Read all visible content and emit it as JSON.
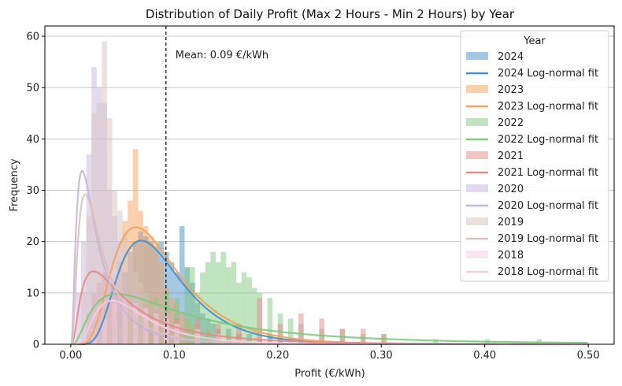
{
  "chart_data": {
    "type": "bar",
    "title": "Distribution of Daily Profit (Max 2 Hours - Min 2 Hours) by Year",
    "xlabel": "Profit (€/kWh)",
    "ylabel": "Frequency",
    "xlim": [
      -0.025,
      0.525
    ],
    "ylim": [
      0,
      62
    ],
    "xticks": [
      0.0,
      0.1,
      0.2,
      0.3,
      0.4,
      0.5
    ],
    "xtick_labels": [
      "0.00",
      "0.10",
      "0.20",
      "0.30",
      "0.40",
      "0.50"
    ],
    "yticks": [
      0,
      10,
      20,
      30,
      40,
      50,
      60
    ],
    "grid": "horizontal",
    "bin_width": 0.005,
    "mean_line": {
      "x": 0.092,
      "label": "Mean: 0.09 €/kWh"
    },
    "legend": {
      "title": "Year",
      "placement": "top-right"
    },
    "series": [
      {
        "name": "2024",
        "fit_name": "2024 Log-normal fit",
        "color": "#4a8fc9",
        "hist_x": [
          0.04,
          0.045,
          0.05,
          0.055,
          0.06,
          0.065,
          0.07,
          0.075,
          0.08,
          0.085,
          0.09,
          0.095,
          0.1,
          0.105,
          0.11,
          0.115,
          0.12,
          0.125,
          0.13,
          0.135,
          0.14,
          0.15,
          0.16,
          0.17,
          0.18,
          0.19,
          0.2,
          0.22
        ],
        "hist_y": [
          5,
          10,
          14,
          18,
          20,
          22,
          21,
          20,
          19,
          20,
          18,
          16,
          14,
          23,
          15,
          12,
          8,
          6,
          5,
          4,
          3,
          3,
          2,
          2,
          1,
          2,
          1,
          1
        ],
        "fit": {
          "peak_x": 0.068,
          "peak_y": 20.2,
          "sigma": 0.45
        }
      },
      {
        "name": "2023",
        "fit_name": "2023 Log-normal fit",
        "color": "#f5a25b",
        "hist_x": [
          0.035,
          0.04,
          0.045,
          0.05,
          0.055,
          0.06,
          0.065,
          0.07,
          0.075,
          0.08,
          0.085,
          0.09,
          0.095,
          0.1,
          0.105,
          0.11,
          0.115,
          0.12,
          0.13,
          0.14,
          0.15,
          0.16,
          0.18,
          0.2
        ],
        "hist_y": [
          8,
          12,
          16,
          24,
          28,
          38,
          26,
          23,
          21,
          20,
          16,
          11,
          9,
          8,
          6,
          5,
          4,
          4,
          3,
          3,
          2,
          2,
          1,
          1
        ],
        "fit": {
          "peak_x": 0.063,
          "peak_y": 22.8,
          "sigma": 0.5
        }
      },
      {
        "name": "2022",
        "fit_name": "2022 Log-normal fit",
        "color": "#7fc97f",
        "hist_x": [
          0.03,
          0.04,
          0.05,
          0.06,
          0.07,
          0.08,
          0.09,
          0.1,
          0.11,
          0.115,
          0.12,
          0.125,
          0.13,
          0.135,
          0.14,
          0.145,
          0.15,
          0.155,
          0.16,
          0.165,
          0.17,
          0.175,
          0.18,
          0.19,
          0.2,
          0.21,
          0.22,
          0.24,
          0.26,
          0.28,
          0.3,
          0.35,
          0.4,
          0.45
        ],
        "hist_y": [
          4,
          6,
          8,
          9,
          10,
          9,
          10,
          9,
          15,
          15,
          10,
          14,
          16,
          18,
          16,
          18,
          15,
          16,
          12,
          14,
          13,
          11,
          10,
          9,
          6,
          5,
          4,
          3,
          3,
          2,
          2,
          1,
          1,
          1
        ],
        "fit": {
          "peak_x": 0.045,
          "peak_y": 9.8,
          "sigma": 0.9
        }
      },
      {
        "name": "2021",
        "fit_name": "2021 Log-normal fit",
        "color": "#e88a8a",
        "hist_x": [
          0.015,
          0.02,
          0.025,
          0.03,
          0.035,
          0.04,
          0.05,
          0.06,
          0.07,
          0.08,
          0.09,
          0.1,
          0.12,
          0.14,
          0.16,
          0.18,
          0.2,
          0.22,
          0.24,
          0.26,
          0.28,
          0.3
        ],
        "hist_y": [
          6,
          10,
          12,
          14,
          12,
          10,
          9,
          8,
          8,
          7,
          6,
          5,
          5,
          4,
          4,
          9,
          4,
          6,
          5,
          3,
          3,
          2
        ],
        "fit": {
          "peak_x": 0.022,
          "peak_y": 14.2,
          "sigma": 0.9
        }
      },
      {
        "name": "2020",
        "fit_name": "2020 Log-normal fit",
        "color": "#c7b5dc",
        "hist_x": [
          0.005,
          0.01,
          0.015,
          0.02,
          0.025,
          0.03,
          0.035,
          0.04,
          0.045,
          0.05,
          0.06,
          0.07,
          0.08,
          0.09,
          0.1
        ],
        "hist_y": [
          10,
          20,
          37,
          54,
          50,
          47,
          30,
          25,
          20,
          14,
          10,
          7,
          5,
          3,
          2
        ],
        "fit": {
          "peak_x": 0.011,
          "peak_y": 33.8,
          "sigma": 0.85
        }
      },
      {
        "name": "2019",
        "fit_name": "2019 Log-normal fit",
        "color": "#d9c2bd",
        "hist_x": [
          0.01,
          0.015,
          0.02,
          0.025,
          0.03,
          0.035,
          0.04,
          0.045,
          0.05,
          0.055,
          0.06,
          0.065,
          0.07,
          0.08,
          0.09,
          0.1,
          0.12
        ],
        "hist_y": [
          10,
          25,
          45,
          47,
          59,
          44,
          30,
          26,
          22,
          18,
          14,
          12,
          10,
          8,
          6,
          4,
          2
        ],
        "fit": {
          "peak_x": 0.014,
          "peak_y": 29.2,
          "sigma": 0.8
        }
      },
      {
        "name": "2018",
        "fit_name": "2018 Log-normal fit",
        "color": "#f6cde2",
        "hist_x": [
          0.02,
          0.03,
          0.04,
          0.05,
          0.06,
          0.07,
          0.08,
          0.09,
          0.1,
          0.12,
          0.14,
          0.16
        ],
        "hist_y": [
          3,
          5,
          8,
          9,
          8,
          7,
          6,
          5,
          4,
          3,
          2,
          1
        ],
        "fit": {
          "peak_x": 0.04,
          "peak_y": 8.5,
          "sigma": 0.6
        }
      }
    ]
  }
}
